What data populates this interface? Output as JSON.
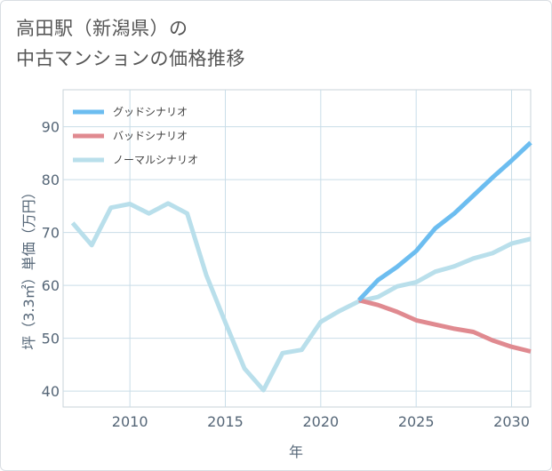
{
  "title_lines": [
    "高田駅（新潟県）の",
    "中古マンションの価格推移"
  ],
  "chart_data": {
    "type": "line",
    "title": "高田駅（新潟県）の中古マンションの価格推移",
    "xlabel": "年",
    "ylabel": "坪（3.3㎡）単価（万円）",
    "xlim": [
      2006.5,
      2031
    ],
    "ylim": [
      37,
      97
    ],
    "xticks": [
      2010,
      2015,
      2020,
      2025,
      2030
    ],
    "yticks": [
      40,
      50,
      60,
      70,
      80,
      90
    ],
    "grid": true,
    "legend_position": "top-left",
    "series": [
      {
        "name": "グッドシナリオ",
        "color": "#6cbdf0",
        "x": [
          2022,
          2023,
          2024,
          2025,
          2026,
          2027,
          2028,
          2029,
          2030,
          2031
        ],
        "y": [
          57.2,
          61.0,
          63.5,
          66.5,
          70.8,
          73.6,
          77.0,
          80.4,
          83.6,
          87.0
        ]
      },
      {
        "name": "バッドシナリオ",
        "color": "#e08a90",
        "x": [
          2022,
          2023,
          2024,
          2025,
          2026,
          2027,
          2028,
          2029,
          2030,
          2031
        ],
        "y": [
          57.2,
          56.3,
          55.0,
          53.4,
          52.6,
          51.8,
          51.2,
          49.6,
          48.4,
          47.5
        ]
      },
      {
        "name": "ノーマルシナリオ",
        "color": "#b9dfeb",
        "x": [
          2007,
          2008,
          2009,
          2010,
          2011,
          2012,
          2013,
          2014,
          2015,
          2016,
          2017,
          2018,
          2019,
          2020,
          2021,
          2022,
          2023,
          2024,
          2025,
          2026,
          2027,
          2028,
          2029,
          2030,
          2031
        ],
        "y": [
          71.8,
          67.6,
          74.7,
          75.4,
          73.6,
          75.5,
          73.6,
          62.0,
          53.0,
          44.3,
          40.2,
          47.2,
          47.8,
          53.1,
          55.2,
          57.0,
          57.8,
          59.8,
          60.6,
          62.6,
          63.6,
          65.1,
          66.1,
          67.9,
          68.8
        ]
      }
    ]
  }
}
